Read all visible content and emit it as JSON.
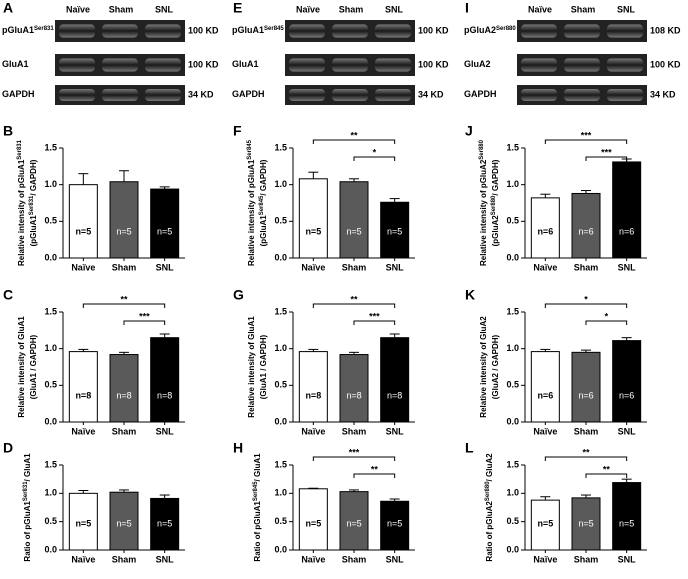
{
  "blots": [
    {
      "letter": "A",
      "header": [
        "Naïve",
        "Sham",
        "SNL"
      ],
      "rows": [
        {
          "label": [
            "pGluA1",
            "Ser831"
          ],
          "size": "100 KD"
        },
        {
          "label": [
            "GluA1"
          ],
          "size": "100 KD"
        },
        {
          "label": [
            "GAPDH"
          ],
          "size": "34 KD"
        }
      ]
    },
    {
      "letter": "E",
      "header": [
        "Naïve",
        "Sham",
        "SNL"
      ],
      "rows": [
        {
          "label": [
            "pGluA1",
            "Ser845"
          ],
          "size": "100 KD"
        },
        {
          "label": [
            "GluA1"
          ],
          "size": "100 KD"
        },
        {
          "label": [
            "GAPDH"
          ],
          "size": "34 KD"
        }
      ]
    },
    {
      "letter": "I",
      "header": [
        "Naïve",
        "Sham",
        "SNL"
      ],
      "rows": [
        {
          "label": [
            "pGluA2",
            "Ser880"
          ],
          "size": "108 KD"
        },
        {
          "label": [
            "GluA2"
          ],
          "size": "100 KD"
        },
        {
          "label": [
            "GAPDH"
          ],
          "size": "34 KD"
        }
      ]
    }
  ],
  "chart_data": [
    {
      "type": "bar",
      "letter": "B",
      "categories": [
        "Naïve",
        "Sham",
        "SNL"
      ],
      "values": [
        1.0,
        1.04,
        0.94
      ],
      "errors": [
        0.15,
        0.15,
        0.03
      ],
      "n_labels": [
        "n=5",
        "n=5",
        "n=5"
      ],
      "colors": [
        "#ffffff",
        "#5a5a5a",
        "#000000"
      ],
      "ylabel": [
        [
          "Relative intensity of pGluA1",
          "Ser831"
        ],
        [
          "(pGluA1",
          "Ser831",
          "/ GAPDH)"
        ]
      ],
      "ylim": [
        0,
        1.5
      ],
      "yticks": [
        {
          "value": 0,
          "label": "0.0"
        },
        {
          "value": 0.5,
          "label": "0.5"
        },
        {
          "value": 1,
          "label": "1.0"
        },
        {
          "value": 1.5,
          "label": "1.5"
        }
      ],
      "significance": []
    },
    {
      "type": "bar",
      "letter": "F",
      "categories": [
        "Naïve",
        "Sham",
        "SNL"
      ],
      "values": [
        1.08,
        1.04,
        0.76
      ],
      "errors": [
        0.09,
        0.04,
        0.05
      ],
      "n_labels": [
        "n=5",
        "n=5",
        "n=5"
      ],
      "colors": [
        "#ffffff",
        "#5a5a5a",
        "#000000"
      ],
      "ylabel": [
        [
          "Relative intensity of pGluA1",
          "Ser845"
        ],
        [
          "(pGluA1",
          "Ser845",
          "/ GAPDH)"
        ]
      ],
      "ylim": [
        0,
        1.5
      ],
      "yticks": [
        {
          "value": 0,
          "label": "0.0"
        },
        {
          "value": 0.5,
          "label": "0.5"
        },
        {
          "value": 1,
          "label": "1.0"
        },
        {
          "value": 1.5,
          "label": "1.5"
        }
      ],
      "significance": [
        {
          "from": 0,
          "to": 2,
          "label": "**"
        },
        {
          "from": 1,
          "to": 2,
          "label": "*"
        }
      ]
    },
    {
      "type": "bar",
      "letter": "J",
      "categories": [
        "Naïve",
        "Sham",
        "SNL"
      ],
      "values": [
        0.82,
        0.88,
        1.31
      ],
      "errors": [
        0.05,
        0.04,
        0.04
      ],
      "n_labels": [
        "n=6",
        "n=6",
        "n=6"
      ],
      "colors": [
        "#ffffff",
        "#5a5a5a",
        "#000000"
      ],
      "ylabel": [
        [
          "Relative intensity of pGluA2",
          "Ser880"
        ],
        [
          "(pGluA2",
          "Ser880",
          "/ GAPDH)"
        ]
      ],
      "ylim": [
        0,
        1.5
      ],
      "yticks": [
        {
          "value": 0,
          "label": "0.0"
        },
        {
          "value": 0.5,
          "label": "0.5"
        },
        {
          "value": 1,
          "label": "1.0"
        },
        {
          "value": 1.5,
          "label": "1.5"
        }
      ],
      "significance": [
        {
          "from": 0,
          "to": 2,
          "label": "***"
        },
        {
          "from": 1,
          "to": 2,
          "label": "***"
        }
      ]
    },
    {
      "type": "bar",
      "letter": "C",
      "categories": [
        "Naïve",
        "Sham",
        "SNL"
      ],
      "values": [
        0.96,
        0.92,
        1.15
      ],
      "errors": [
        0.03,
        0.03,
        0.05
      ],
      "n_labels": [
        "n=8",
        "n=8",
        "n=8"
      ],
      "colors": [
        "#ffffff",
        "#5a5a5a",
        "#000000"
      ],
      "ylabel": [
        [
          "Relative intensity of GluA1"
        ],
        [
          "(GluA1 / GAPDH)"
        ]
      ],
      "ylim": [
        0,
        1.5
      ],
      "yticks": [
        {
          "value": 0,
          "label": "0.0"
        },
        {
          "value": 0.5,
          "label": "0.5"
        },
        {
          "value": 1,
          "label": "1.0"
        },
        {
          "value": 1.5,
          "label": "1.5"
        }
      ],
      "significance": [
        {
          "from": 0,
          "to": 2,
          "label": "**"
        },
        {
          "from": 1,
          "to": 2,
          "label": "***"
        }
      ]
    },
    {
      "type": "bar",
      "letter": "G",
      "categories": [
        "Naïve",
        "Sham",
        "SNL"
      ],
      "values": [
        0.96,
        0.92,
        1.15
      ],
      "errors": [
        0.03,
        0.03,
        0.05
      ],
      "n_labels": [
        "n=8",
        "n=8",
        "n=8"
      ],
      "colors": [
        "#ffffff",
        "#5a5a5a",
        "#000000"
      ],
      "ylabel": [
        [
          "Relative intensity of GluA1"
        ],
        [
          "(GluA1 / GAPDH)"
        ]
      ],
      "ylim": [
        0,
        1.5
      ],
      "yticks": [
        {
          "value": 0,
          "label": "0.0"
        },
        {
          "value": 0.5,
          "label": "0.5"
        },
        {
          "value": 1,
          "label": "1.0"
        },
        {
          "value": 1.5,
          "label": "1.5"
        }
      ],
      "significance": [
        {
          "from": 0,
          "to": 2,
          "label": "**"
        },
        {
          "from": 1,
          "to": 2,
          "label": "***"
        }
      ]
    },
    {
      "type": "bar",
      "letter": "K",
      "categories": [
        "Naïve",
        "Sham",
        "SNL"
      ],
      "values": [
        0.96,
        0.95,
        1.11
      ],
      "errors": [
        0.03,
        0.03,
        0.04
      ],
      "n_labels": [
        "n=6",
        "n=6",
        "n=6"
      ],
      "colors": [
        "#ffffff",
        "#5a5a5a",
        "#000000"
      ],
      "ylabel": [
        [
          "Relative intensity of GluA2"
        ],
        [
          "(GluA2 / GAPDH)"
        ]
      ],
      "ylim": [
        0,
        1.5
      ],
      "yticks": [
        {
          "value": 0,
          "label": "0.0"
        },
        {
          "value": 0.5,
          "label": "0.5"
        },
        {
          "value": 1,
          "label": "1.0"
        },
        {
          "value": 1.5,
          "label": "1.5"
        }
      ],
      "significance": [
        {
          "from": 0,
          "to": 2,
          "label": "*"
        },
        {
          "from": 1,
          "to": 2,
          "label": "*"
        }
      ]
    },
    {
      "type": "bar",
      "letter": "D",
      "categories": [
        "Naïve",
        "Sham",
        "SNL"
      ],
      "values": [
        1.0,
        1.02,
        0.91
      ],
      "errors": [
        0.05,
        0.04,
        0.06
      ],
      "n_labels": [
        "n=5",
        "n=5",
        "n=5"
      ],
      "colors": [
        "#ffffff",
        "#5a5a5a",
        "#000000"
      ],
      "ylabel": [
        [
          "Ratio of pGluA1",
          "Ser831",
          "/ GluA1"
        ]
      ],
      "ylim": [
        0,
        1.5
      ],
      "yticks": [
        {
          "value": 0,
          "label": "0.0"
        },
        {
          "value": 0.5,
          "label": "0.5"
        },
        {
          "value": 1,
          "label": "1.0"
        },
        {
          "value": 1.5,
          "label": "1.5"
        }
      ],
      "significance": []
    },
    {
      "type": "bar",
      "letter": "H",
      "categories": [
        "Naïve",
        "Sham",
        "SNL"
      ],
      "values": [
        1.08,
        1.03,
        0.86
      ],
      "errors": [
        0.01,
        0.03,
        0.04
      ],
      "n_labels": [
        "n=5",
        "n=5",
        "n=5"
      ],
      "colors": [
        "#ffffff",
        "#5a5a5a",
        "#000000"
      ],
      "ylabel": [
        [
          "Ratio of pGluA1",
          "Ser845",
          "/ GluA1"
        ]
      ],
      "ylim": [
        0,
        1.5
      ],
      "yticks": [
        {
          "value": 0,
          "label": "0.0"
        },
        {
          "value": 0.5,
          "label": "0.5"
        },
        {
          "value": 1,
          "label": "1.0"
        },
        {
          "value": 1.5,
          "label": "1.5"
        }
      ],
      "significance": [
        {
          "from": 0,
          "to": 2,
          "label": "***"
        },
        {
          "from": 1,
          "to": 2,
          "label": "**"
        }
      ]
    },
    {
      "type": "bar",
      "letter": "L",
      "categories": [
        "Naïve",
        "Sham",
        "SNL"
      ],
      "values": [
        0.88,
        0.92,
        1.19
      ],
      "errors": [
        0.06,
        0.05,
        0.06
      ],
      "n_labels": [
        "n=5",
        "n=5",
        "n=5"
      ],
      "colors": [
        "#ffffff",
        "#5a5a5a",
        "#000000"
      ],
      "ylabel": [
        [
          "Ratio of pGluA2",
          "Ser880",
          "/ GluA2"
        ]
      ],
      "ylim": [
        0,
        1.5
      ],
      "yticks": [
        {
          "value": 0,
          "label": "0.0"
        },
        {
          "value": 0.5,
          "label": "0.5"
        },
        {
          "value": 1,
          "label": "1.0"
        },
        {
          "value": 1.5,
          "label": "1.5"
        }
      ],
      "significance": [
        {
          "from": 0,
          "to": 2,
          "label": "**"
        },
        {
          "from": 1,
          "to": 2,
          "label": "**"
        }
      ]
    }
  ]
}
